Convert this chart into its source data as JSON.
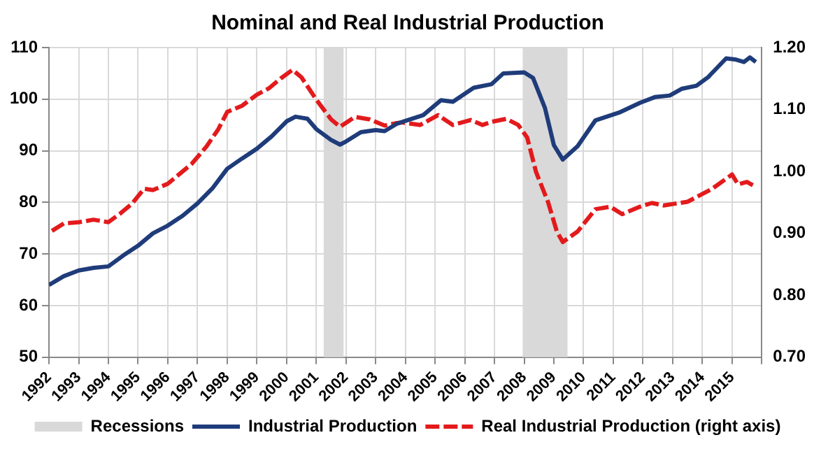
{
  "chart_data": {
    "type": "line",
    "title": "Nominal and Real Industrial Production",
    "xlim": [
      1992,
      2016
    ],
    "xticks": [
      1992,
      1993,
      1994,
      1995,
      1996,
      1997,
      1998,
      1999,
      2000,
      2001,
      2002,
      2003,
      2004,
      2005,
      2006,
      2007,
      2008,
      2009,
      2010,
      2011,
      2012,
      2013,
      2014,
      2015,
      {
        "value": 2016,
        "label": null
      }
    ],
    "ylim": [
      50,
      110
    ],
    "yticks": [
      50,
      60,
      70,
      80,
      90,
      100,
      110
    ],
    "y2lim": [
      0.7,
      1.2
    ],
    "y2ticks": [
      {
        "value": 0.7,
        "label": "0.70"
      },
      {
        "value": 0.8,
        "label": "0.80"
      },
      {
        "value": 0.9,
        "label": "0.90"
      },
      {
        "value": 1.0,
        "label": "1.00"
      },
      {
        "value": 1.1,
        "label": "1.10"
      },
      {
        "value": 1.2,
        "label": "1.20"
      }
    ],
    "grid": true,
    "legend": "bottom",
    "marker": "none",
    "bands": [
      {
        "axis": "x",
        "from": 2001.25,
        "to": 2001.92,
        "label": "Recessions",
        "color": "#d9d9d9"
      },
      {
        "axis": "x",
        "from": 2007.95,
        "to": 2009.46,
        "color": "#d9d9d9"
      }
    ],
    "series": [
      {
        "name": "Industrial Production",
        "color": "#1f3c7a",
        "line_style": "solid",
        "x": [
          1992.0,
          1992.5,
          1993.0,
          1993.5,
          1994.0,
          1994.5,
          1995.0,
          1995.5,
          1996.0,
          1996.5,
          1997.0,
          1997.5,
          1998.0,
          1998.5,
          1999.0,
          1999.5,
          2000.0,
          2000.3,
          2000.7,
          2001.0,
          2001.5,
          2001.8,
          2002.0,
          2002.5,
          2003.0,
          2003.3,
          2003.7,
          2004.0,
          2004.6,
          2005.2,
          2005.6,
          2006.3,
          2006.9,
          2007.3,
          2008.0,
          2008.3,
          2008.7,
          2009.0,
          2009.3,
          2009.8,
          2010.4,
          2011.2,
          2011.9,
          2012.4,
          2012.9,
          2013.3,
          2013.8,
          2014.2,
          2014.8,
          2015.1,
          2015.4,
          2015.6,
          2015.8
        ],
        "values": [
          64.0,
          65.7,
          66.8,
          67.3,
          67.6,
          69.7,
          71.6,
          74.0,
          75.5,
          77.4,
          79.8,
          82.7,
          86.5,
          88.5,
          90.4,
          92.8,
          95.7,
          96.6,
          96.2,
          94.2,
          92.1,
          91.2,
          91.8,
          93.6,
          94.0,
          93.8,
          95.2,
          95.8,
          96.9,
          99.8,
          99.5,
          102.2,
          102.9,
          105.0,
          105.2,
          104.1,
          98.3,
          91.1,
          88.3,
          90.9,
          95.9,
          97.4,
          99.3,
          100.4,
          100.7,
          102.0,
          102.6,
          104.3,
          107.9,
          107.7,
          107.2,
          108.1,
          107.2
        ]
      },
      {
        "name": "Real Industrial Production (right axis)",
        "color": "#e31a1c",
        "axis": "y2",
        "line_style": "dashed",
        "x": [
          1992.1,
          1992.5,
          1993.0,
          1993.5,
          1994.0,
          1994.4,
          1994.8,
          1995.2,
          1995.5,
          1996.0,
          1996.4,
          1996.8,
          1997.3,
          1997.7,
          1998.0,
          1998.5,
          1999.0,
          1999.4,
          1999.8,
          2000.2,
          2000.5,
          2001.0,
          2001.5,
          2001.8,
          2002.3,
          2002.8,
          2003.3,
          2003.7,
          2003.9,
          2004.5,
          2005.1,
          2005.6,
          2006.2,
          2006.6,
          2006.9,
          2007.4,
          2007.8,
          2008.1,
          2008.4,
          2008.8,
          2009.1,
          2009.3,
          2009.8,
          2010.4,
          2010.9,
          2011.3,
          2011.9,
          2012.3,
          2012.7,
          2013.5,
          2014.3,
          2015.0,
          2015.2,
          2015.5,
          2015.8
        ],
        "values": [
          0.904,
          0.916,
          0.918,
          0.922,
          0.918,
          0.932,
          0.948,
          0.972,
          0.97,
          0.98,
          0.996,
          1.012,
          1.04,
          1.068,
          1.096,
          1.106,
          1.124,
          1.134,
          1.15,
          1.164,
          1.152,
          1.116,
          1.084,
          1.072,
          1.088,
          1.084,
          1.074,
          1.078,
          1.079,
          1.075,
          1.091,
          1.075,
          1.083,
          1.075,
          1.08,
          1.085,
          1.075,
          1.055,
          0.999,
          0.951,
          0.903,
          0.886,
          0.903,
          0.939,
          0.943,
          0.931,
          0.943,
          0.949,
          0.945,
          0.951,
          0.971,
          0.995,
          0.979,
          0.983,
          0.975
        ]
      }
    ]
  }
}
